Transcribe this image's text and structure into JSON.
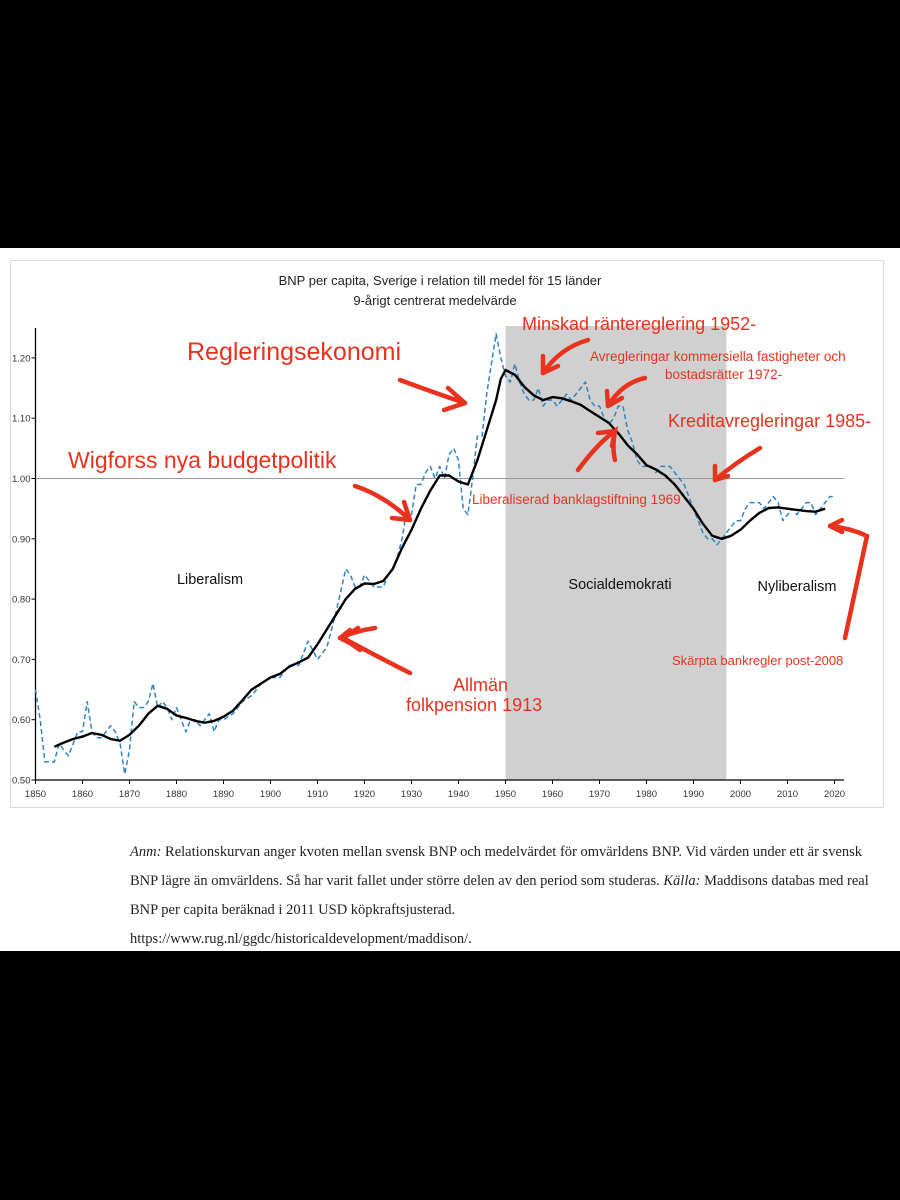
{
  "chart_data": {
    "type": "line",
    "title": "BNP per capita, Sverige i relation till medel för 15 länder",
    "subtitle": "9-årigt centrerat medelvärde",
    "xlabel": "",
    "ylabel": "",
    "xlim": [
      1850,
      2022
    ],
    "ylim": [
      0.5,
      1.25
    ],
    "x_ticks": [
      1850,
      1860,
      1870,
      1880,
      1890,
      1900,
      1910,
      1920,
      1930,
      1940,
      1950,
      1960,
      1970,
      1980,
      1990,
      2000,
      2010,
      2020
    ],
    "y_ticks": [
      "0.50",
      "0.60",
      "0.70",
      "0.80",
      "0.90",
      "1.00",
      "1.10",
      "1.20"
    ],
    "reference_line": 1.0,
    "shaded_region": {
      "from": 1950,
      "to": 1997,
      "color": "#d0d0d0"
    },
    "series": [
      {
        "style": "dashed",
        "color": "#2e86c1",
        "x": [
          1850,
          1851,
          1852,
          1853,
          1854,
          1855,
          1856,
          1857,
          1858,
          1859,
          1860,
          1861,
          1862,
          1863,
          1864,
          1865,
          1866,
          1867,
          1868,
          1869,
          1870,
          1871,
          1872,
          1873,
          1874,
          1875,
          1876,
          1877,
          1878,
          1879,
          1880,
          1881,
          1882,
          1883,
          1884,
          1885,
          1886,
          1887,
          1888,
          1889,
          1890,
          1892,
          1894,
          1896,
          1898,
          1900,
          1902,
          1904,
          1906,
          1908,
          1910,
          1912,
          1914,
          1916,
          1917,
          1918,
          1919,
          1920,
          1921,
          1922,
          1923,
          1924,
          1925,
          1926,
          1927,
          1928,
          1929,
          1930,
          1931,
          1932,
          1933,
          1934,
          1935,
          1936,
          1937,
          1938,
          1939,
          1940,
          1941,
          1942,
          1943,
          1944,
          1945,
          1946,
          1947,
          1948,
          1949,
          1950,
          1951,
          1952,
          1953,
          1954,
          1955,
          1956,
          1957,
          1958,
          1959,
          1960,
          1961,
          1962,
          1963,
          1964,
          1965,
          1966,
          1967,
          1968,
          1969,
          1970,
          1971,
          1972,
          1973,
          1974,
          1975,
          1976,
          1977,
          1978,
          1979,
          1980,
          1981,
          1982,
          1983,
          1984,
          1985,
          1986,
          1987,
          1988,
          1989,
          1990,
          1991,
          1992,
          1993,
          1994,
          1995,
          1996,
          1997,
          1998,
          1999,
          2000,
          2001,
          2002,
          2003,
          2004,
          2005,
          2006,
          2007,
          2008,
          2009,
          2010,
          2011,
          2012,
          2013,
          2014,
          2015,
          2016,
          2017,
          2018,
          2019,
          2020
        ],
        "y": [
          0.65,
          0.6,
          0.53,
          0.53,
          0.53,
          0.56,
          0.55,
          0.54,
          0.56,
          0.58,
          0.58,
          0.63,
          0.58,
          0.57,
          0.57,
          0.58,
          0.59,
          0.58,
          0.56,
          0.51,
          0.55,
          0.63,
          0.62,
          0.62,
          0.63,
          0.66,
          0.62,
          0.63,
          0.62,
          0.6,
          0.62,
          0.6,
          0.58,
          0.6,
          0.6,
          0.59,
          0.6,
          0.61,
          0.58,
          0.6,
          0.6,
          0.61,
          0.63,
          0.64,
          0.66,
          0.67,
          0.67,
          0.69,
          0.69,
          0.73,
          0.7,
          0.72,
          0.78,
          0.85,
          0.84,
          0.82,
          0.82,
          0.84,
          0.83,
          0.82,
          0.82,
          0.82,
          0.84,
          0.85,
          0.87,
          0.9,
          0.95,
          0.94,
          0.99,
          0.99,
          1.01,
          1.02,
          1.0,
          1.02,
          1.0,
          1.04,
          1.05,
          1.03,
          0.95,
          0.94,
          1.0,
          1.07,
          1.07,
          1.14,
          1.19,
          1.24,
          1.2,
          1.17,
          1.16,
          1.19,
          1.16,
          1.14,
          1.13,
          1.13,
          1.15,
          1.12,
          1.13,
          1.13,
          1.12,
          1.13,
          1.14,
          1.13,
          1.14,
          1.15,
          1.16,
          1.13,
          1.12,
          1.12,
          1.1,
          1.09,
          1.1,
          1.12,
          1.12,
          1.08,
          1.06,
          1.03,
          1.02,
          1.02,
          1.02,
          1.01,
          1.02,
          1.02,
          1.02,
          1.01,
          1.0,
          0.99,
          0.97,
          0.95,
          0.93,
          0.91,
          0.9,
          0.9,
          0.89,
          0.9,
          0.91,
          0.92,
          0.93,
          0.93,
          0.95,
          0.96,
          0.96,
          0.96,
          0.95,
          0.96,
          0.97,
          0.96,
          0.93,
          0.94,
          0.95,
          0.94,
          0.95,
          0.96,
          0.96,
          0.94,
          0.95,
          0.96,
          0.97,
          0.97
        ]
      },
      {
        "style": "solid",
        "color": "#000000",
        "x": [
          1854,
          1856,
          1858,
          1860,
          1862,
          1864,
          1866,
          1868,
          1870,
          1872,
          1874,
          1876,
          1878,
          1880,
          1882,
          1884,
          1886,
          1888,
          1890,
          1892,
          1894,
          1896,
          1898,
          1900,
          1902,
          1904,
          1906,
          1908,
          1910,
          1912,
          1914,
          1916,
          1918,
          1920,
          1922,
          1924,
          1926,
          1928,
          1930,
          1932,
          1934,
          1936,
          1938,
          1940,
          1942,
          1944,
          1946,
          1948,
          1949,
          1950,
          1952,
          1954,
          1956,
          1958,
          1960,
          1962,
          1964,
          1966,
          1968,
          1970,
          1972,
          1974,
          1976,
          1978,
          1980,
          1982,
          1984,
          1986,
          1988,
          1990,
          1992,
          1994,
          1996,
          1998,
          2000,
          2002,
          2004,
          2006,
          2008,
          2010,
          2012,
          2014,
          2016,
          2018
        ],
        "y": [
          0.555,
          0.562,
          0.568,
          0.572,
          0.578,
          0.575,
          0.568,
          0.565,
          0.575,
          0.59,
          0.61,
          0.623,
          0.618,
          0.607,
          0.603,
          0.598,
          0.595,
          0.598,
          0.605,
          0.615,
          0.632,
          0.65,
          0.66,
          0.67,
          0.676,
          0.688,
          0.695,
          0.703,
          0.725,
          0.75,
          0.775,
          0.8,
          0.817,
          0.826,
          0.825,
          0.83,
          0.85,
          0.885,
          0.915,
          0.95,
          0.98,
          1.005,
          1.005,
          0.995,
          0.99,
          1.03,
          1.08,
          1.13,
          1.165,
          1.18,
          1.172,
          1.152,
          1.138,
          1.13,
          1.135,
          1.133,
          1.128,
          1.122,
          1.112,
          1.102,
          1.092,
          1.075,
          1.055,
          1.04,
          1.022,
          1.015,
          1.005,
          0.99,
          0.97,
          0.95,
          0.925,
          0.905,
          0.9,
          0.905,
          0.915,
          0.93,
          0.943,
          0.951,
          0.952,
          0.95,
          0.948,
          0.946,
          0.945,
          0.95
        ]
      }
    ],
    "period_labels": [
      "Liberalism",
      "Socialdemokrati",
      "Nyliberalism"
    ],
    "annotations": [
      {
        "text": "Regleringsekonomi",
        "year": 1942
      },
      {
        "text": "Wigforss nya budgetpolitik",
        "year": 1932
      },
      {
        "text": "Minskad räntereglering 1952-",
        "year": 1952
      },
      {
        "text": "Avregleringar kommersiella fastigheter och",
        "year": 1972
      },
      {
        "text": "bostadsrätter 1972-",
        "year": 1972
      },
      {
        "text": "Kreditavregleringar 1985-",
        "year": 1985
      },
      {
        "text": "Liberaliserad banklagstiftning 1969",
        "year": 1969
      },
      {
        "text": "Allmän",
        "year": 1913
      },
      {
        "text": "folkpension 1913",
        "year": 1913
      },
      {
        "text": "Skärpta bankregler post-2008",
        "year": 2008
      }
    ],
    "annotation_color": "#e8321e"
  },
  "note": {
    "lead": "Anm:",
    "body": " Relationskurvan anger kvoten mellan svensk BNP och medelvärdet för omvärldens BNP. Vid värden under ett är svensk BNP lägre än omvärldens. Så har varit fallet under större delen av den period som studeras. ",
    "source_lead": "Källa:",
    "source_body": " Maddisons databas med real BNP per capita beräknad i 2011 USD köpkraftsjusterad.",
    "url": "https://www.rug.nl/ggdc/historicaldevelopment/maddison/."
  }
}
